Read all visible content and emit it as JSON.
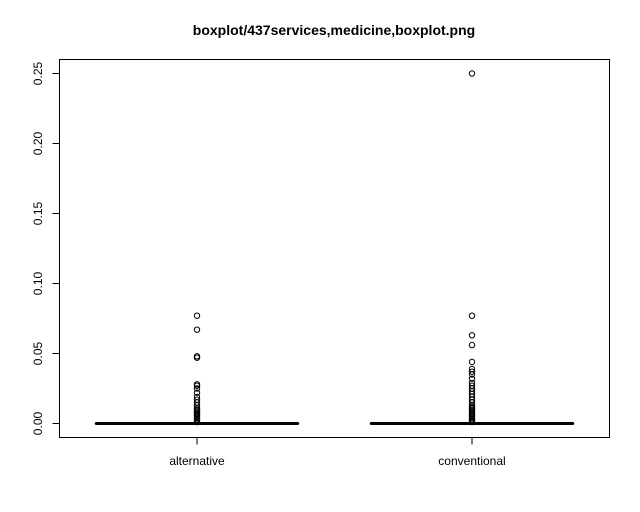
{
  "chart_data": {
    "type": "boxplot",
    "title": "boxplot/437services,medicine,boxplot.png",
    "xlabel": "",
    "ylabel": "",
    "ylim": [
      -0.01,
      0.26
    ],
    "yticks": [
      0.0,
      0.05,
      0.1,
      0.15,
      0.2,
      0.25
    ],
    "ytick_labels": [
      "0.00",
      "0.05",
      "0.10",
      "0.15",
      "0.20",
      "0.25"
    ],
    "categories": [
      "alternative",
      "conventional"
    ],
    "boxes": [
      {
        "category": "alternative",
        "min": 0.0,
        "q1": 0.0,
        "median": 0.0,
        "q3": 0.0,
        "max": 0.0,
        "outliers": [
          0.077,
          0.067,
          0.048,
          0.047,
          0.028,
          0.027,
          0.025,
          0.022,
          0.019,
          0.017,
          0.015,
          0.013,
          0.011,
          0.01,
          0.009,
          0.008,
          0.007,
          0.006,
          0.005,
          0.004,
          0.003,
          0.002,
          0.001
        ]
      },
      {
        "category": "conventional",
        "min": 0.0,
        "q1": 0.0,
        "median": 0.0,
        "q3": 0.0,
        "max": 0.0,
        "outliers": [
          0.25,
          0.077,
          0.063,
          0.056,
          0.044,
          0.039,
          0.037,
          0.035,
          0.032,
          0.029,
          0.027,
          0.025,
          0.023,
          0.021,
          0.019,
          0.017,
          0.015,
          0.013,
          0.012,
          0.011,
          0.01,
          0.009,
          0.008,
          0.007,
          0.006,
          0.005,
          0.004,
          0.003,
          0.002,
          0.001
        ]
      }
    ],
    "grid": false,
    "legend": "none"
  }
}
